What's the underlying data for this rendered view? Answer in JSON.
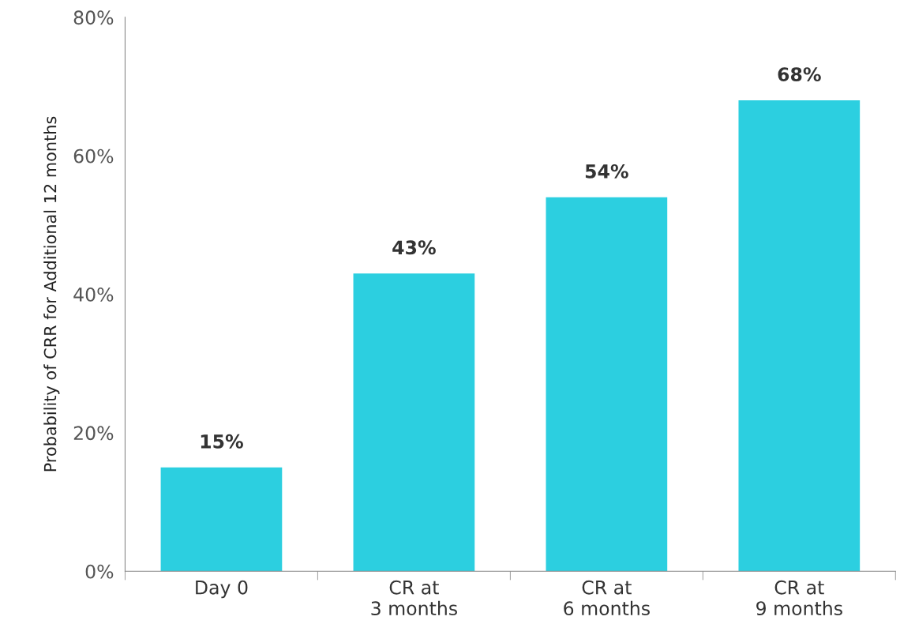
{
  "chart_data": {
    "type": "bar",
    "ylabel": "Probability of CRR for Additional 12 months",
    "categories": [
      "Day 0",
      "CR at\n3 months",
      "CR at\n6 months",
      "CR at\n9 months"
    ],
    "values": [
      15,
      43,
      54,
      68
    ],
    "value_labels": [
      "15%",
      "43%",
      "54%",
      "68%"
    ],
    "color": "#2ccfe0",
    "ylim": [
      0,
      80
    ],
    "yticks": [
      {
        "value": 0,
        "label": "0%"
      },
      {
        "value": 20,
        "label": "20%"
      },
      {
        "value": 40,
        "label": "40%"
      },
      {
        "value": 60,
        "label": "60%"
      },
      {
        "value": 80,
        "label": "80%"
      }
    ],
    "grid": false,
    "legend": false
  }
}
